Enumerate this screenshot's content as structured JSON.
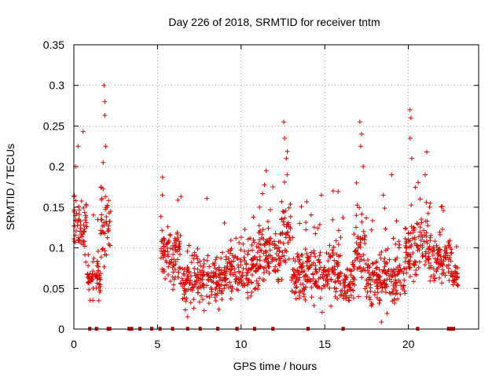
{
  "chart_data": {
    "type": "scatter",
    "title": "Day 226 of 2018, SRMTID for receiver tntm",
    "xlabel": "GPS time / hours",
    "ylabel": "SRMTID / TECUs",
    "xlim": [
      0,
      24.2
    ],
    "ylim": [
      0,
      0.35
    ],
    "x_ticks": [
      0,
      5,
      10,
      15,
      20
    ],
    "x_tick_labels": [
      "0",
      "5",
      "10",
      "15",
      "20"
    ],
    "y_ticks": [
      0,
      0.05,
      0.1,
      0.15,
      0.2,
      0.25,
      0.3,
      0.35
    ],
    "y_tick_labels": [
      "0",
      "0.05",
      "0.1",
      "0.15",
      "0.2",
      "0.25",
      "0.3",
      "0.35"
    ],
    "grid": true,
    "marker": "plus",
    "color": "#e00000",
    "series": [
      {
        "name": "SRMTID",
        "segments": [
          {
            "x_start": 0.0,
            "x_end": 0.4,
            "center": 0.135,
            "spread": 0.035
          },
          {
            "x_start": 0.4,
            "x_end": 0.8,
            "center": 0.12,
            "spread": 0.04
          },
          {
            "x_start": 0.8,
            "x_end": 1.6,
            "center": 0.065,
            "spread": 0.03
          },
          {
            "x_start": 1.6,
            "x_end": 2.2,
            "center": 0.13,
            "spread": 0.045
          },
          {
            "x_start": 5.2,
            "x_end": 6.5,
            "center": 0.09,
            "spread": 0.04
          },
          {
            "x_start": 6.5,
            "x_end": 9.0,
            "center": 0.06,
            "spread": 0.035
          },
          {
            "x_start": 9.0,
            "x_end": 11.0,
            "center": 0.075,
            "spread": 0.035
          },
          {
            "x_start": 11.0,
            "x_end": 12.4,
            "center": 0.09,
            "spread": 0.04
          },
          {
            "x_start": 12.4,
            "x_end": 13.0,
            "center": 0.12,
            "spread": 0.05
          },
          {
            "x_start": 13.0,
            "x_end": 16.0,
            "center": 0.07,
            "spread": 0.035
          },
          {
            "x_start": 16.0,
            "x_end": 16.8,
            "center": 0.06,
            "spread": 0.03
          },
          {
            "x_start": 16.8,
            "x_end": 17.4,
            "center": 0.1,
            "spread": 0.045
          },
          {
            "x_start": 17.4,
            "x_end": 19.8,
            "center": 0.06,
            "spread": 0.035
          },
          {
            "x_start": 19.8,
            "x_end": 21.2,
            "center": 0.1,
            "spread": 0.04
          },
          {
            "x_start": 21.2,
            "x_end": 22.6,
            "center": 0.085,
            "spread": 0.03
          },
          {
            "x_start": 22.6,
            "x_end": 23.0,
            "center": 0.065,
            "spread": 0.02
          }
        ],
        "peaks": [
          {
            "x": 0.1,
            "y": 0.2
          },
          {
            "x": 0.25,
            "y": 0.225
          },
          {
            "x": 0.55,
            "y": 0.243
          },
          {
            "x": 1.8,
            "y": 0.3
          },
          {
            "x": 1.85,
            "y": 0.28
          },
          {
            "x": 1.85,
            "y": 0.263
          },
          {
            "x": 1.9,
            "y": 0.225
          },
          {
            "x": 1.75,
            "y": 0.205
          },
          {
            "x": 5.3,
            "y": 0.187
          },
          {
            "x": 5.3,
            "y": 0.165
          },
          {
            "x": 11.1,
            "y": 0.15
          },
          {
            "x": 11.5,
            "y": 0.195
          },
          {
            "x": 11.9,
            "y": 0.175
          },
          {
            "x": 12.55,
            "y": 0.255
          },
          {
            "x": 12.6,
            "y": 0.235
          },
          {
            "x": 12.7,
            "y": 0.21
          },
          {
            "x": 12.75,
            "y": 0.19
          },
          {
            "x": 13.5,
            "y": 0.13
          },
          {
            "x": 14.8,
            "y": 0.165
          },
          {
            "x": 15.5,
            "y": 0.17
          },
          {
            "x": 17.1,
            "y": 0.255
          },
          {
            "x": 17.2,
            "y": 0.24
          },
          {
            "x": 17.15,
            "y": 0.225
          },
          {
            "x": 17.3,
            "y": 0.2
          },
          {
            "x": 16.9,
            "y": 0.18
          },
          {
            "x": 18.5,
            "y": 0.165
          },
          {
            "x": 19.0,
            "y": 0.19
          },
          {
            "x": 20.1,
            "y": 0.27
          },
          {
            "x": 20.15,
            "y": 0.26
          },
          {
            "x": 20.1,
            "y": 0.235
          },
          {
            "x": 20.2,
            "y": 0.21
          },
          {
            "x": 21.1,
            "y": 0.218
          },
          {
            "x": 21.0,
            "y": 0.19
          },
          {
            "x": 20.7,
            "y": 0.16
          },
          {
            "x": 21.3,
            "y": 0.155
          }
        ],
        "zero_flags": [
          0.95,
          1.35,
          2.05,
          2.15,
          3.3,
          3.45,
          3.95,
          4.65,
          5.15,
          5.9,
          6.8,
          7.55,
          8.6,
          9.75,
          10.8,
          11.9,
          14.0,
          16.1,
          20.55,
          22.4,
          22.55,
          22.7
        ]
      }
    ]
  }
}
